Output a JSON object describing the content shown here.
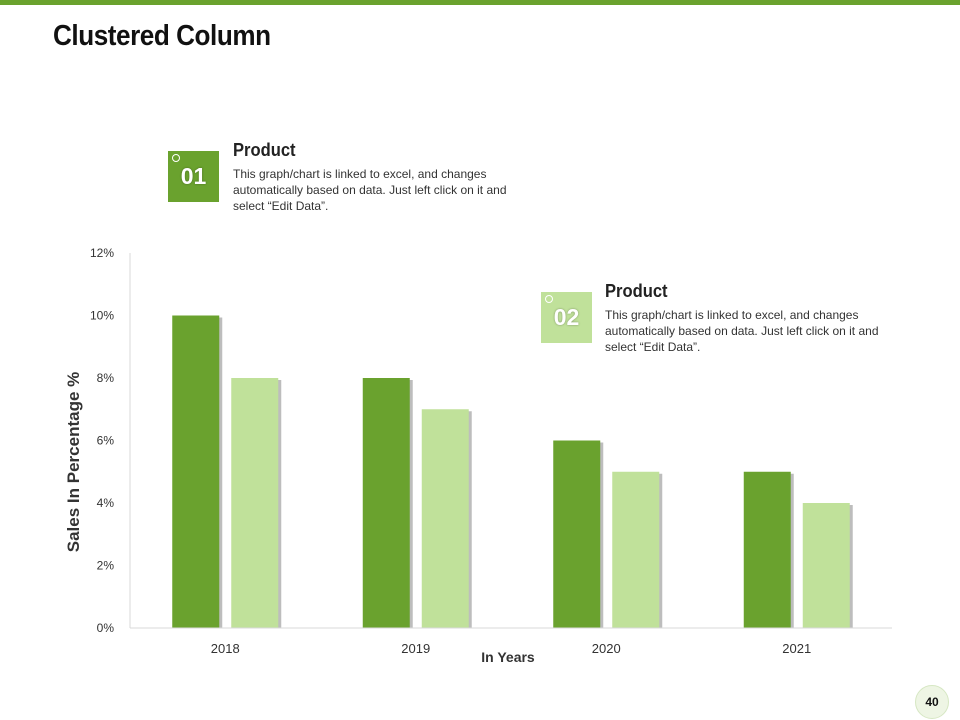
{
  "slide": {
    "title": "Clustered Column",
    "page_number": "40",
    "accent_color": "#6aa22e",
    "light_color": "#c0e19a"
  },
  "callouts": [
    {
      "number": "01",
      "heading": "Product",
      "text": "This graph/chart is linked to excel, and changes automatically based on data. Just left click on it and select “Edit Data”.",
      "color": "#6aa22e"
    },
    {
      "number": "02",
      "heading": "Product",
      "text": "This graph/chart is linked to excel, and changes automatically based on data. Just left click on it and select “Edit Data”.",
      "color": "#c0e19a"
    }
  ],
  "chart_data": {
    "type": "bar",
    "title": "",
    "categories": [
      "2018",
      "2019",
      "2020",
      "2021"
    ],
    "series": [
      {
        "name": "Product 01",
        "values": [
          10,
          8,
          6,
          5
        ],
        "color": "#6aa22e"
      },
      {
        "name": "Product 02",
        "values": [
          8,
          7,
          5,
          4
        ],
        "color": "#c0e19a"
      }
    ],
    "xlabel": "In Years",
    "ylabel": "Sales In Percentage %",
    "ylim": [
      0,
      12
    ],
    "yticks": [
      0,
      2,
      4,
      6,
      8,
      10,
      12
    ],
    "ytick_labels": [
      "0%",
      "2%",
      "4%",
      "6%",
      "8%",
      "10%",
      "12%"
    ],
    "grid": false,
    "legend": "none"
  }
}
